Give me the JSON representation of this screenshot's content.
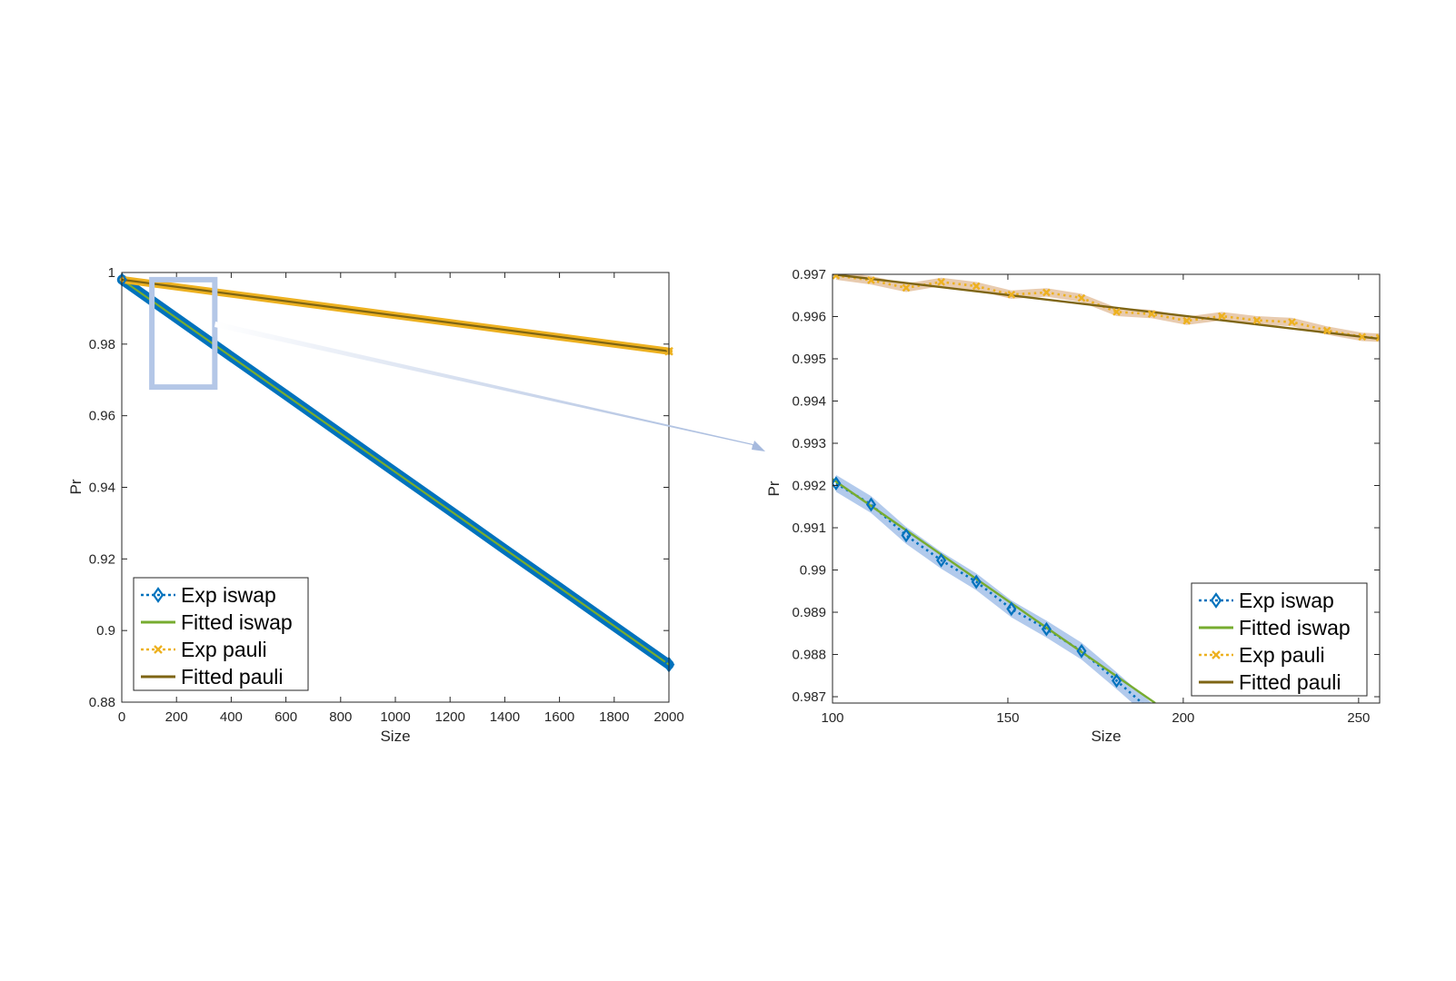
{
  "colors": {
    "exp_iswap": "#0072BD",
    "fitted_iswap": "#77AC30",
    "exp_pauli": "#EDB120",
    "fitted_pauli": "#7E6514",
    "band_iswap": "#7FA6E0",
    "band_pauli": "#D9A879",
    "zoom_box": "#B4C7E7"
  },
  "chart_data": [
    {
      "type": "line",
      "panel": "overview",
      "xlabel": "Size",
      "ylabel": "Pr",
      "xlim": [
        0,
        2000
      ],
      "ylim": [
        0.88,
        1.0
      ],
      "xticks": [
        "0",
        "200",
        "400",
        "600",
        "800",
        "1000",
        "1200",
        "1400",
        "1600",
        "1800",
        "2000"
      ],
      "yticks": [
        "0.88",
        "0.9",
        "0.92",
        "0.94",
        "0.96",
        "0.98",
        "1"
      ],
      "grid": false,
      "legend_position": "bottom-left",
      "series": [
        {
          "name": "Exp iswap",
          "style": "dotted-diamond",
          "x": [
            1,
            200,
            400,
            600,
            800,
            1000,
            1200,
            1400,
            1600,
            1800,
            2000
          ],
          "y": [
            0.998,
            0.9873,
            0.9765,
            0.9658,
            0.955,
            0.9442,
            0.9335,
            0.9227,
            0.912,
            0.9012,
            0.8905
          ]
        },
        {
          "name": "Fitted iswap",
          "style": "solid",
          "x": [
            0,
            2000
          ],
          "y": [
            0.998,
            0.8905
          ]
        },
        {
          "name": "Exp pauli",
          "style": "dotted-cross",
          "x": [
            1,
            200,
            400,
            600,
            800,
            1000,
            1200,
            1400,
            1600,
            1800,
            2000
          ],
          "y": [
            0.998,
            0.996,
            0.994,
            0.992,
            0.99,
            0.988,
            0.986,
            0.984,
            0.982,
            0.98,
            0.978
          ]
        },
        {
          "name": "Fitted pauli",
          "style": "solid",
          "x": [
            0,
            2000
          ],
          "y": [
            0.998,
            0.978
          ]
        }
      ],
      "zoom_region": {
        "x": [
          110,
          340
        ],
        "y": [
          0.968,
          0.998
        ]
      }
    },
    {
      "type": "line",
      "panel": "zoom",
      "xlabel": "Size",
      "ylabel": "Pr",
      "xlim": [
        100,
        256
      ],
      "ylim": [
        0.98685,
        0.997
      ],
      "xticks": [
        "100",
        "150",
        "200",
        "250"
      ],
      "yticks": [
        "0.987",
        "0.988",
        "0.989",
        "0.99",
        "0.991",
        "0.992",
        "0.993",
        "0.994",
        "0.995",
        "0.996",
        "0.997"
      ],
      "grid": false,
      "legend_position": "bottom-right",
      "series": [
        {
          "name": "Exp iswap",
          "style": "dotted-diamond",
          "x": [
            101,
            111,
            121,
            131,
            141,
            151,
            161,
            171,
            181,
            191
          ],
          "y": [
            0.99205,
            0.99155,
            0.99082,
            0.99023,
            0.98972,
            0.98908,
            0.9886,
            0.98808,
            0.98738,
            0.98665
          ],
          "band": 0.0002
        },
        {
          "name": "Fitted iswap",
          "style": "solid",
          "x": [
            100,
            192
          ],
          "y": [
            0.99215,
            0.98685
          ]
        },
        {
          "name": "Exp pauli",
          "style": "dotted-cross",
          "x": [
            101,
            111,
            121,
            131,
            141,
            151,
            161,
            171,
            181,
            191,
            201,
            211,
            221,
            231,
            241,
            251,
            256
          ],
          "y": [
            0.99697,
            0.99686,
            0.99668,
            0.99682,
            0.99672,
            0.99652,
            0.99657,
            0.99644,
            0.99611,
            0.99606,
            0.9959,
            0.99601,
            0.99591,
            0.99587,
            0.99567,
            0.99552,
            0.9955
          ],
          "band": 0.0001
        },
        {
          "name": "Fitted pauli",
          "style": "solid",
          "x": [
            100,
            256
          ],
          "y": [
            0.997,
            0.99547
          ]
        }
      ]
    }
  ]
}
